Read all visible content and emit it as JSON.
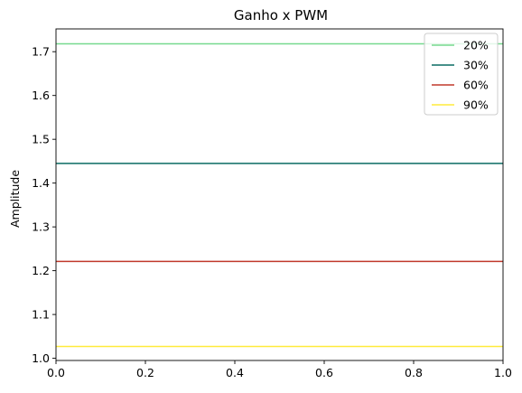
{
  "chart_data": {
    "type": "line",
    "title": "Ganho x PWM",
    "xlabel": "",
    "ylabel": "Amplitude",
    "xlim": [
      0.0,
      1.0
    ],
    "ylim": [
      0.995,
      1.752
    ],
    "xticks": [
      "0.0",
      "0.2",
      "0.4",
      "0.6",
      "0.8",
      "1.0"
    ],
    "yticks": [
      "1.0",
      "1.1",
      "1.2",
      "1.3",
      "1.4",
      "1.5",
      "1.6",
      "1.7"
    ],
    "grid": false,
    "legend_position": "top-right",
    "series": [
      {
        "name": "20%",
        "color": "#77d98f",
        "x": [
          0.0,
          1.0
        ],
        "y": [
          1.718,
          1.718
        ]
      },
      {
        "name": "30%",
        "color": "#0a6b63",
        "x": [
          0.0,
          1.0
        ],
        "y": [
          1.445,
          1.445
        ]
      },
      {
        "name": "60%",
        "color": "#c0392b",
        "x": [
          0.0,
          1.0
        ],
        "y": [
          1.221,
          1.221
        ]
      },
      {
        "name": "90%",
        "color": "#ffeb3b",
        "x": [
          0.0,
          1.0
        ],
        "y": [
          1.027,
          1.027
        ]
      }
    ]
  }
}
